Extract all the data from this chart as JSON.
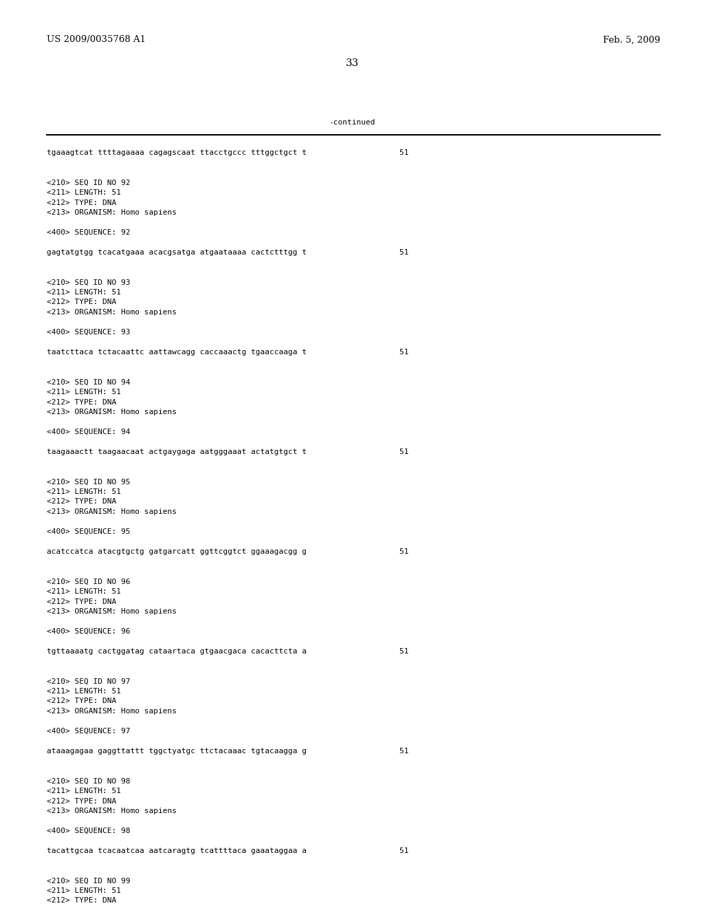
{
  "header_left": "US 2009/0035768 A1",
  "header_right": "Feb. 5, 2009",
  "page_number": "33",
  "continued_label": "-continued",
  "background_color": "#ffffff",
  "text_color": "#000000",
  "font_size_header": 9.5,
  "font_size_body": 8.0,
  "font_size_page": 11,
  "lines": [
    {
      "text": "tgaaagtcat ttttagaaaa cagagscaat ttacctgccc tttggctgct t                    51",
      "blank_before": 0,
      "blank_after": 2
    },
    {
      "text": "<210> SEQ ID NO 92",
      "blank_before": 0,
      "blank_after": 0
    },
    {
      "text": "<211> LENGTH: 51",
      "blank_before": 0,
      "blank_after": 0
    },
    {
      "text": "<212> TYPE: DNA",
      "blank_before": 0,
      "blank_after": 0
    },
    {
      "text": "<213> ORGANISM: Homo sapiens",
      "blank_before": 0,
      "blank_after": 1
    },
    {
      "text": "<400> SEQUENCE: 92",
      "blank_before": 0,
      "blank_after": 1
    },
    {
      "text": "gagtatgtgg tcacatgaaa acacgsatga atgaataaaa cactctttgg t                    51",
      "blank_before": 0,
      "blank_after": 2
    },
    {
      "text": "<210> SEQ ID NO 93",
      "blank_before": 0,
      "blank_after": 0
    },
    {
      "text": "<211> LENGTH: 51",
      "blank_before": 0,
      "blank_after": 0
    },
    {
      "text": "<212> TYPE: DNA",
      "blank_before": 0,
      "blank_after": 0
    },
    {
      "text": "<213> ORGANISM: Homo sapiens",
      "blank_before": 0,
      "blank_after": 1
    },
    {
      "text": "<400> SEQUENCE: 93",
      "blank_before": 0,
      "blank_after": 1
    },
    {
      "text": "taatcttaca tctacaattc aattawcagg caccaaactg tgaaccaaga t                    51",
      "blank_before": 0,
      "blank_after": 2
    },
    {
      "text": "<210> SEQ ID NO 94",
      "blank_before": 0,
      "blank_after": 0
    },
    {
      "text": "<211> LENGTH: 51",
      "blank_before": 0,
      "blank_after": 0
    },
    {
      "text": "<212> TYPE: DNA",
      "blank_before": 0,
      "blank_after": 0
    },
    {
      "text": "<213> ORGANISM: Homo sapiens",
      "blank_before": 0,
      "blank_after": 1
    },
    {
      "text": "<400> SEQUENCE: 94",
      "blank_before": 0,
      "blank_after": 1
    },
    {
      "text": "taagaaactt taagaacaat actgaygaga aatgggaaat actatgtgct t                    51",
      "blank_before": 0,
      "blank_after": 2
    },
    {
      "text": "<210> SEQ ID NO 95",
      "blank_before": 0,
      "blank_after": 0
    },
    {
      "text": "<211> LENGTH: 51",
      "blank_before": 0,
      "blank_after": 0
    },
    {
      "text": "<212> TYPE: DNA",
      "blank_before": 0,
      "blank_after": 0
    },
    {
      "text": "<213> ORGANISM: Homo sapiens",
      "blank_before": 0,
      "blank_after": 1
    },
    {
      "text": "<400> SEQUENCE: 95",
      "blank_before": 0,
      "blank_after": 1
    },
    {
      "text": "acatccatca atacgtgctg gatgarcatt ggttcggtct ggaaagacgg g                    51",
      "blank_before": 0,
      "blank_after": 2
    },
    {
      "text": "<210> SEQ ID NO 96",
      "blank_before": 0,
      "blank_after": 0
    },
    {
      "text": "<211> LENGTH: 51",
      "blank_before": 0,
      "blank_after": 0
    },
    {
      "text": "<212> TYPE: DNA",
      "blank_before": 0,
      "blank_after": 0
    },
    {
      "text": "<213> ORGANISM: Homo sapiens",
      "blank_before": 0,
      "blank_after": 1
    },
    {
      "text": "<400> SEQUENCE: 96",
      "blank_before": 0,
      "blank_after": 1
    },
    {
      "text": "tgttaaaatg cactggatag cataartaca gtgaacgaca cacacttcta a                    51",
      "blank_before": 0,
      "blank_after": 2
    },
    {
      "text": "<210> SEQ ID NO 97",
      "blank_before": 0,
      "blank_after": 0
    },
    {
      "text": "<211> LENGTH: 51",
      "blank_before": 0,
      "blank_after": 0
    },
    {
      "text": "<212> TYPE: DNA",
      "blank_before": 0,
      "blank_after": 0
    },
    {
      "text": "<213> ORGANISM: Homo sapiens",
      "blank_before": 0,
      "blank_after": 1
    },
    {
      "text": "<400> SEQUENCE: 97",
      "blank_before": 0,
      "blank_after": 1
    },
    {
      "text": "ataaagagaa gaggttattt tggctyatgc ttctacaaac tgtacaagga g                    51",
      "blank_before": 0,
      "blank_after": 2
    },
    {
      "text": "<210> SEQ ID NO 98",
      "blank_before": 0,
      "blank_after": 0
    },
    {
      "text": "<211> LENGTH: 51",
      "blank_before": 0,
      "blank_after": 0
    },
    {
      "text": "<212> TYPE: DNA",
      "blank_before": 0,
      "blank_after": 0
    },
    {
      "text": "<213> ORGANISM: Homo sapiens",
      "blank_before": 0,
      "blank_after": 1
    },
    {
      "text": "<400> SEQUENCE: 98",
      "blank_before": 0,
      "blank_after": 1
    },
    {
      "text": "tacattgcaa tcacaatcaa aatcaragtg tcattttaca gaaataggaa a                    51",
      "blank_before": 0,
      "blank_after": 2
    },
    {
      "text": "<210> SEQ ID NO 99",
      "blank_before": 0,
      "blank_after": 0
    },
    {
      "text": "<211> LENGTH: 51",
      "blank_before": 0,
      "blank_after": 0
    },
    {
      "text": "<212> TYPE: DNA",
      "blank_before": 0,
      "blank_after": 0
    }
  ]
}
